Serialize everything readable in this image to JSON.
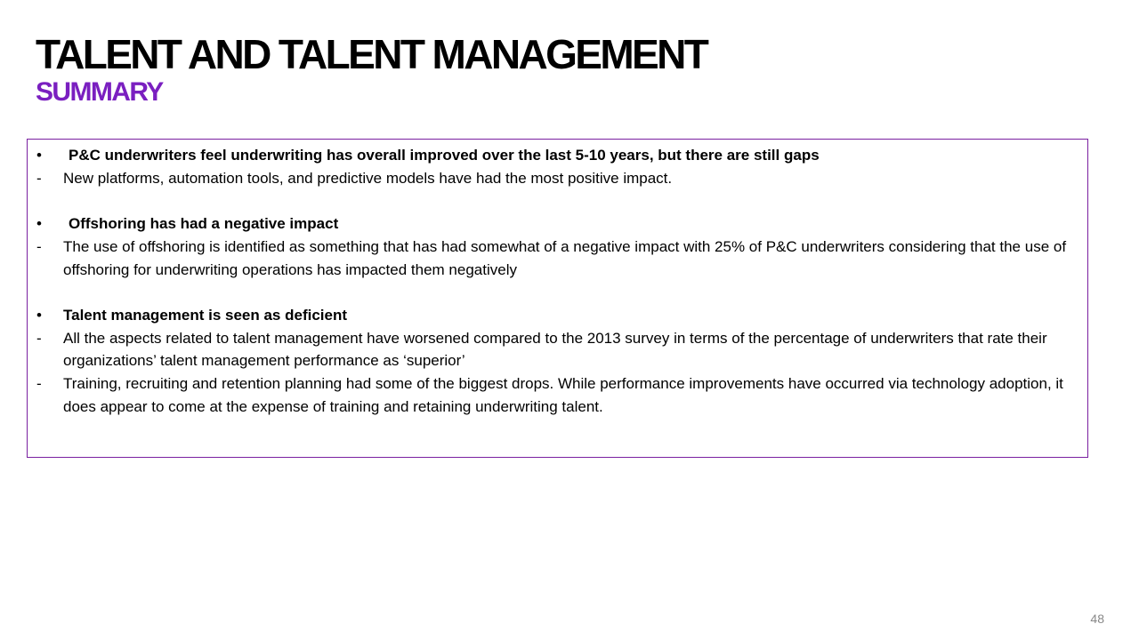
{
  "slide": {
    "title": "TALENT AND TALENT MANAGEMENT",
    "subtitle": "SUMMARY",
    "page_number": "48"
  },
  "summary": {
    "sections": [
      {
        "bullet": "•",
        "heading": "P&C underwriters feel underwriting has  overall improved over the last 5-10 years, but there are still gaps",
        "items": [
          {
            "marker": "-",
            "text": "New platforms, automation tools, and predictive models have had the most positive impact."
          }
        ]
      },
      {
        "bullet": "•",
        "heading": "Offshoring has had a negative impact",
        "items": [
          {
            "marker": "-",
            "text": "The use of offshoring is identified as something that has had somewhat of a negative impact with 25% of P&C underwriters considering that the use of offshoring for underwriting operations has impacted them negatively"
          }
        ]
      },
      {
        "bullet": "•",
        "heading": "Talent management is seen as deficient",
        "items": [
          {
            "marker": "-",
            "text": "All the aspects related to talent management have worsened compared to the 2013 survey in terms of the percentage of underwriters that rate their organizations’ talent management performance as ‘superior’"
          },
          {
            "marker": "-",
            "text": "Training, recruiting and retention planning had some of the biggest drops. While performance improvements have occurred via technology adoption, it does appear to come at the expense of training and retaining underwriting talent."
          }
        ]
      }
    ]
  },
  "colors": {
    "subtitle": "#7a1fc0",
    "box_border": "#7a1fa0",
    "page_number": "#888888"
  }
}
